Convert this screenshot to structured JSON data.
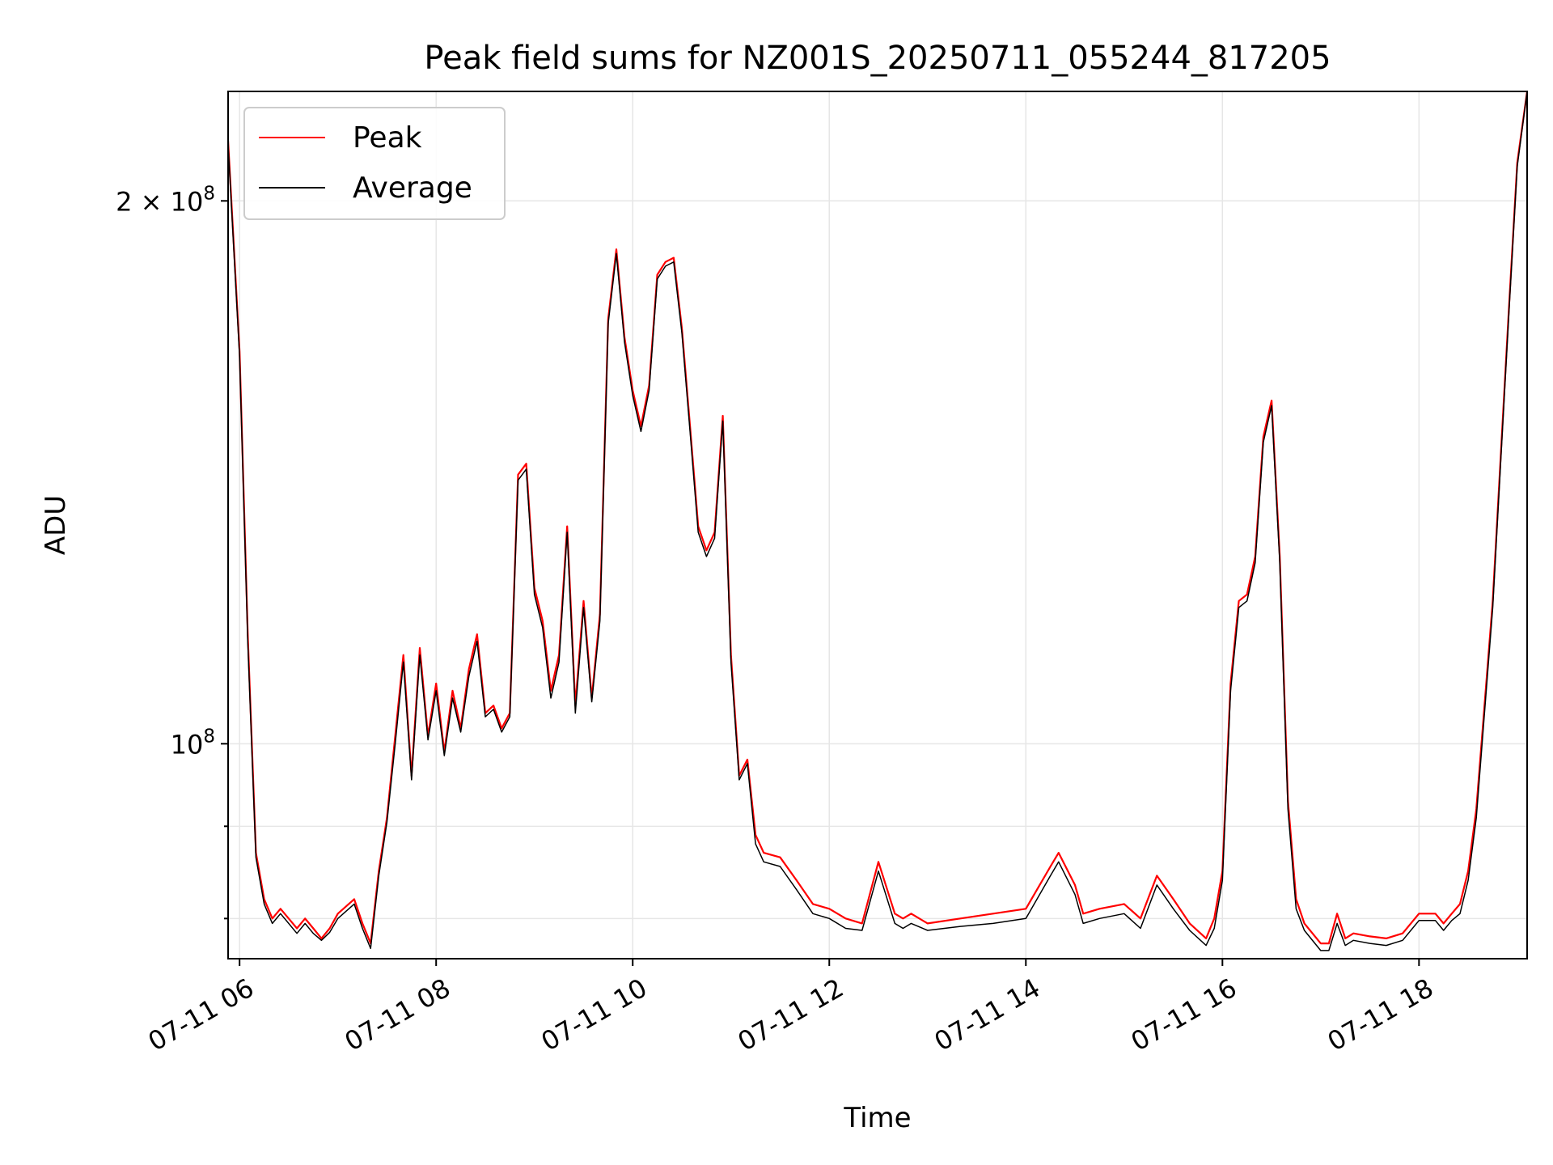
{
  "chart_data": {
    "type": "line",
    "title": "Peak field sums for NZ001S_20250711_055244_817205",
    "xlabel": "Time",
    "ylabel": "ADU",
    "y_scale": "log",
    "grid": true,
    "legend_position": "top-left",
    "xlim": [
      "2025-07-11 05:53",
      "2025-07-11 19:06"
    ],
    "ylim": [
      76000000,
      230000000
    ],
    "x_ticks": [
      {
        "value": "2025-07-11 06:00",
        "label": "07-11 06"
      },
      {
        "value": "2025-07-11 08:00",
        "label": "07-11 08"
      },
      {
        "value": "2025-07-11 10:00",
        "label": "07-11 10"
      },
      {
        "value": "2025-07-11 12:00",
        "label": "07-11 12"
      },
      {
        "value": "2025-07-11 14:00",
        "label": "07-11 14"
      },
      {
        "value": "2025-07-11 16:00",
        "label": "07-11 16"
      },
      {
        "value": "2025-07-11 18:00",
        "label": "07-11 18"
      }
    ],
    "y_major_ticks": [
      {
        "value": 100000000,
        "label_base": "10",
        "label_exp": "8"
      },
      {
        "value": 200000000,
        "label_base": "2 × 10",
        "label_exp": "8"
      }
    ],
    "y_minor_ticks": [
      80000000,
      90000000
    ],
    "series": [
      {
        "name": "Peak",
        "color": "#ff0000",
        "x": [
          "05:53",
          "06:00",
          "06:05",
          "06:10",
          "06:15",
          "06:20",
          "06:25",
          "06:30",
          "06:35",
          "06:40",
          "06:45",
          "06:50",
          "06:55",
          "07:00",
          "07:10",
          "07:15",
          "07:20",
          "07:25",
          "07:30",
          "07:35",
          "07:40",
          "07:45",
          "07:50",
          "07:55",
          "08:00",
          "08:05",
          "08:10",
          "08:15",
          "08:20",
          "08:25",
          "08:30",
          "08:35",
          "08:40",
          "08:45",
          "08:50",
          "08:55",
          "09:00",
          "09:05",
          "09:10",
          "09:15",
          "09:20",
          "09:25",
          "09:30",
          "09:35",
          "09:40",
          "09:45",
          "09:50",
          "09:55",
          "10:00",
          "10:05",
          "10:10",
          "10:15",
          "10:20",
          "10:25",
          "10:30",
          "10:35",
          "10:40",
          "10:45",
          "10:50",
          "10:55",
          "11:00",
          "11:05",
          "11:10",
          "11:15",
          "11:20",
          "11:30",
          "11:40",
          "11:50",
          "12:00",
          "12:10",
          "12:20",
          "12:30",
          "12:40",
          "12:45",
          "12:50",
          "13:00",
          "13:20",
          "13:40",
          "14:00",
          "14:15",
          "14:20",
          "14:30",
          "14:35",
          "14:45",
          "15:00",
          "15:10",
          "15:20",
          "15:30",
          "15:40",
          "15:50",
          "15:55",
          "16:00",
          "16:05",
          "16:10",
          "16:15",
          "16:20",
          "16:25",
          "16:30",
          "16:35",
          "16:40",
          "16:45",
          "16:50",
          "17:00",
          "17:05",
          "17:10",
          "17:15",
          "17:20",
          "17:30",
          "17:40",
          "17:50",
          "18:00",
          "18:10",
          "18:15",
          "18:20",
          "18:25",
          "18:30",
          "18:35",
          "18:40",
          "18:45",
          "18:50",
          "18:55",
          "19:00",
          "19:06"
        ],
        "y": [
          216000000,
          165000000,
          115000000,
          87000000,
          82000000,
          80000000,
          81000000,
          80000000,
          79000000,
          80000000,
          79000000,
          78000000,
          79000000,
          80500000,
          82000000,
          79500000,
          77500000,
          85000000,
          91000000,
          101000000,
          112000000,
          96000000,
          113000000,
          101000000,
          108000000,
          99000000,
          107000000,
          102000000,
          110000000,
          115000000,
          104000000,
          105000000,
          102000000,
          104000000,
          141000000,
          143000000,
          122000000,
          117000000,
          107000000,
          112000000,
          132000000,
          105000000,
          120000000,
          106000000,
          118000000,
          172000000,
          188000000,
          168000000,
          157000000,
          150000000,
          158000000,
          182000000,
          185000000,
          186000000,
          170000000,
          150000000,
          132000000,
          128000000,
          131000000,
          152000000,
          112000000,
          96000000,
          98000000,
          89000000,
          87000000,
          86500000,
          84000000,
          81500000,
          81000000,
          80000000,
          79500000,
          86000000,
          80500000,
          80000000,
          80500000,
          79500000,
          80000000,
          80500000,
          81000000,
          85500000,
          87000000,
          83500000,
          80500000,
          81000000,
          81500000,
          80000000,
          84500000,
          82000000,
          79500000,
          78000000,
          80000000,
          85000000,
          108000000,
          120000000,
          121000000,
          127000000,
          148000000,
          155000000,
          127000000,
          93000000,
          82000000,
          79500000,
          77500000,
          77500000,
          80500000,
          78000000,
          78500000,
          78200000,
          78000000,
          78500000,
          80500000,
          80500000,
          79500000,
          80500000,
          81500000,
          85000000,
          92000000,
          105000000,
          120000000,
          145000000,
          175000000,
          210000000,
          230000000
        ]
      },
      {
        "name": "Average",
        "color": "#000000",
        "x": [
          "05:53",
          "06:00",
          "06:05",
          "06:10",
          "06:15",
          "06:20",
          "06:25",
          "06:30",
          "06:35",
          "06:40",
          "06:45",
          "06:50",
          "06:55",
          "07:00",
          "07:10",
          "07:15",
          "07:20",
          "07:25",
          "07:30",
          "07:35",
          "07:40",
          "07:45",
          "07:50",
          "07:55",
          "08:00",
          "08:05",
          "08:10",
          "08:15",
          "08:20",
          "08:25",
          "08:30",
          "08:35",
          "08:40",
          "08:45",
          "08:50",
          "08:55",
          "09:00",
          "09:05",
          "09:10",
          "09:15",
          "09:20",
          "09:25",
          "09:30",
          "09:35",
          "09:40",
          "09:45",
          "09:50",
          "09:55",
          "10:00",
          "10:05",
          "10:10",
          "10:15",
          "10:20",
          "10:25",
          "10:30",
          "10:35",
          "10:40",
          "10:45",
          "10:50",
          "10:55",
          "11:00",
          "11:05",
          "11:10",
          "11:15",
          "11:20",
          "11:30",
          "11:40",
          "11:50",
          "12:00",
          "12:10",
          "12:20",
          "12:30",
          "12:40",
          "12:45",
          "12:50",
          "13:00",
          "13:20",
          "13:40",
          "14:00",
          "14:15",
          "14:20",
          "14:30",
          "14:35",
          "14:45",
          "15:00",
          "15:10",
          "15:20",
          "15:30",
          "15:40",
          "15:50",
          "15:55",
          "16:00",
          "16:05",
          "16:10",
          "16:15",
          "16:20",
          "16:25",
          "16:30",
          "16:35",
          "16:40",
          "16:45",
          "16:50",
          "17:00",
          "17:05",
          "17:10",
          "17:15",
          "17:20",
          "17:30",
          "17:40",
          "17:50",
          "18:00",
          "18:10",
          "18:15",
          "18:20",
          "18:25",
          "18:30",
          "18:35",
          "18:40",
          "18:45",
          "18:50",
          "18:55",
          "19:00",
          "19:06"
        ],
        "y": [
          215000000,
          164000000,
          114000000,
          86500000,
          81500000,
          79500000,
          80500000,
          79500000,
          78500000,
          79500000,
          78500000,
          77800000,
          78600000,
          80000000,
          81500000,
          79000000,
          77000000,
          84500000,
          90500000,
          100000000,
          111000000,
          95500000,
          112000000,
          100500000,
          107000000,
          98500000,
          106000000,
          101500000,
          109000000,
          114000000,
          103500000,
          104500000,
          101500000,
          103500000,
          140000000,
          142000000,
          121000000,
          116000000,
          106000000,
          111000000,
          131000000,
          104000000,
          119000000,
          105500000,
          117000000,
          171000000,
          187000000,
          167000000,
          156000000,
          149000000,
          157000000,
          181000000,
          184000000,
          185000000,
          169000000,
          149000000,
          131000000,
          127000000,
          130000000,
          151000000,
          111000000,
          95500000,
          97500000,
          88000000,
          86000000,
          85500000,
          83000000,
          80500000,
          80000000,
          79000000,
          78800000,
          85000000,
          79500000,
          79000000,
          79500000,
          78800000,
          79200000,
          79500000,
          80000000,
          84500000,
          86000000,
          82500000,
          79500000,
          80000000,
          80500000,
          79000000,
          83500000,
          81000000,
          78800000,
          77300000,
          79000000,
          84000000,
          107000000,
          119000000,
          120000000,
          126000000,
          147000000,
          154000000,
          126000000,
          92000000,
          81000000,
          78800000,
          76800000,
          76800000,
          79500000,
          77300000,
          77800000,
          77500000,
          77300000,
          77800000,
          79800000,
          79800000,
          78800000,
          79800000,
          80500000,
          84000000,
          91000000,
          104000000,
          119000000,
          144000000,
          174000000,
          209000000,
          230000000
        ]
      }
    ]
  }
}
